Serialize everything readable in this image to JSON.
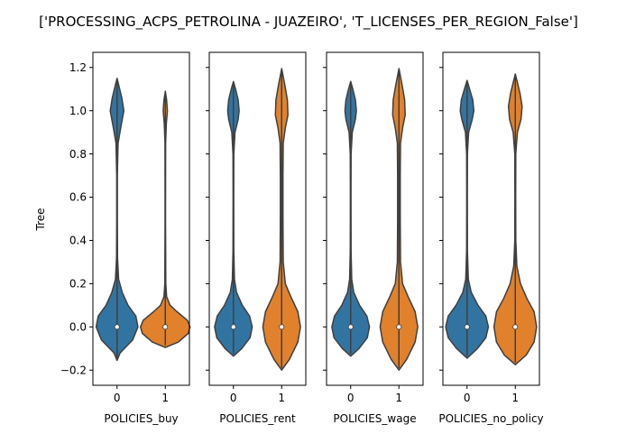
{
  "figure": {
    "suptitle": "['PROCESSING_ACPS_PETROLINA - JUAZEIRO', 'T_LICENSES_PER_REGION_False']"
  },
  "chart_data": {
    "type": "violin",
    "ylabel": "Tree",
    "ylim": [
      -0.27,
      1.27
    ],
    "yticks": [
      -0.2,
      0.0,
      0.2,
      0.4,
      0.6,
      0.8,
      1.0,
      1.2
    ],
    "ytick_labels": [
      "−0.2",
      "0.0",
      "0.2",
      "0.4",
      "0.6",
      "0.8",
      "1.0",
      "1.2"
    ],
    "shared_y": true,
    "colors": {
      "0": "#3274a1",
      "1": "#e1812c",
      "edge": "#3f3f3f"
    },
    "panels": [
      {
        "xlabel": "POLICIES_buy",
        "categories": [
          "0",
          "1"
        ],
        "violins": [
          {
            "category": "0",
            "ymin": -0.155,
            "ymax": 1.15,
            "median": 0.0,
            "profile": [
              [
                -0.155,
                0.0
              ],
              [
                -0.12,
                0.12
              ],
              [
                -0.06,
                0.6
              ],
              [
                0.0,
                0.8
              ],
              [
                0.05,
                0.72
              ],
              [
                0.1,
                0.42
              ],
              [
                0.16,
                0.2
              ],
              [
                0.22,
                0.06
              ],
              [
                0.32,
                0.02
              ],
              [
                0.5,
                0.012
              ],
              [
                0.7,
                0.012
              ],
              [
                0.85,
                0.04
              ],
              [
                0.92,
                0.14
              ],
              [
                1.0,
                0.26
              ],
              [
                1.06,
                0.18
              ],
              [
                1.11,
                0.08
              ],
              [
                1.15,
                0.0
              ]
            ]
          },
          {
            "category": "1",
            "ymin": -0.095,
            "ymax": 1.09,
            "median": 0.0,
            "profile": [
              [
                -0.095,
                0.0
              ],
              [
                -0.07,
                0.5
              ],
              [
                -0.03,
                0.88
              ],
              [
                0.0,
                0.95
              ],
              [
                0.03,
                0.85
              ],
              [
                0.07,
                0.45
              ],
              [
                0.1,
                0.18
              ],
              [
                0.14,
                0.05
              ],
              [
                0.2,
                0.02
              ],
              [
                0.5,
                0.01
              ],
              [
                0.85,
                0.012
              ],
              [
                0.94,
                0.04
              ],
              [
                1.0,
                0.08
              ],
              [
                1.05,
                0.05
              ],
              [
                1.09,
                0.0
              ]
            ]
          }
        ]
      },
      {
        "xlabel": "POLICIES_rent",
        "categories": [
          "0",
          "1"
        ],
        "violins": [
          {
            "category": "0",
            "ymin": -0.135,
            "ymax": 1.135,
            "median": 0.0,
            "profile": [
              [
                -0.135,
                0.0
              ],
              [
                -0.1,
                0.32
              ],
              [
                -0.05,
                0.64
              ],
              [
                0.0,
                0.72
              ],
              [
                0.05,
                0.62
              ],
              [
                0.1,
                0.34
              ],
              [
                0.16,
                0.12
              ],
              [
                0.22,
                0.04
              ],
              [
                0.35,
                0.015
              ],
              [
                0.6,
                0.012
              ],
              [
                0.8,
                0.015
              ],
              [
                0.9,
                0.06
              ],
              [
                0.96,
                0.18
              ],
              [
                1.0,
                0.22
              ],
              [
                1.05,
                0.18
              ],
              [
                1.1,
                0.08
              ],
              [
                1.135,
                0.0
              ]
            ]
          },
          {
            "category": "1",
            "ymin": -0.2,
            "ymax": 1.195,
            "median": 0.0,
            "profile": [
              [
                -0.2,
                0.0
              ],
              [
                -0.15,
                0.3
              ],
              [
                -0.07,
                0.62
              ],
              [
                0.0,
                0.72
              ],
              [
                0.07,
                0.62
              ],
              [
                0.14,
                0.35
              ],
              [
                0.2,
                0.14
              ],
              [
                0.3,
                0.06
              ],
              [
                0.5,
                0.05
              ],
              [
                0.7,
                0.05
              ],
              [
                0.85,
                0.06
              ],
              [
                0.92,
                0.14
              ],
              [
                0.98,
                0.24
              ],
              [
                1.05,
                0.22
              ],
              [
                1.12,
                0.12
              ],
              [
                1.195,
                0.0
              ]
            ]
          }
        ]
      },
      {
        "xlabel": "POLICIES_wage",
        "categories": [
          "0",
          "1"
        ],
        "violins": [
          {
            "category": "0",
            "ymin": -0.135,
            "ymax": 1.135,
            "median": 0.0,
            "profile": [
              [
                -0.135,
                0.0
              ],
              [
                -0.1,
                0.32
              ],
              [
                -0.05,
                0.64
              ],
              [
                0.0,
                0.72
              ],
              [
                0.05,
                0.62
              ],
              [
                0.1,
                0.34
              ],
              [
                0.16,
                0.12
              ],
              [
                0.22,
                0.04
              ],
              [
                0.35,
                0.015
              ],
              [
                0.6,
                0.012
              ],
              [
                0.8,
                0.015
              ],
              [
                0.9,
                0.06
              ],
              [
                0.96,
                0.18
              ],
              [
                1.0,
                0.22
              ],
              [
                1.05,
                0.18
              ],
              [
                1.1,
                0.08
              ],
              [
                1.135,
                0.0
              ]
            ]
          },
          {
            "category": "1",
            "ymin": -0.2,
            "ymax": 1.195,
            "median": 0.0,
            "profile": [
              [
                -0.2,
                0.0
              ],
              [
                -0.15,
                0.3
              ],
              [
                -0.07,
                0.62
              ],
              [
                0.0,
                0.72
              ],
              [
                0.07,
                0.62
              ],
              [
                0.14,
                0.35
              ],
              [
                0.2,
                0.14
              ],
              [
                0.3,
                0.06
              ],
              [
                0.5,
                0.05
              ],
              [
                0.7,
                0.05
              ],
              [
                0.85,
                0.06
              ],
              [
                0.92,
                0.14
              ],
              [
                0.98,
                0.24
              ],
              [
                1.05,
                0.22
              ],
              [
                1.12,
                0.12
              ],
              [
                1.195,
                0.0
              ]
            ]
          }
        ]
      },
      {
        "xlabel": "POLICIES_no_policy",
        "categories": [
          "0",
          "1"
        ],
        "violins": [
          {
            "category": "0",
            "ymin": -0.145,
            "ymax": 1.14,
            "median": 0.0,
            "profile": [
              [
                -0.145,
                0.0
              ],
              [
                -0.1,
                0.4
              ],
              [
                -0.05,
                0.72
              ],
              [
                0.0,
                0.82
              ],
              [
                0.05,
                0.72
              ],
              [
                0.1,
                0.42
              ],
              [
                0.16,
                0.16
              ],
              [
                0.22,
                0.05
              ],
              [
                0.35,
                0.015
              ],
              [
                0.6,
                0.012
              ],
              [
                0.8,
                0.015
              ],
              [
                0.9,
                0.06
              ],
              [
                0.96,
                0.2
              ],
              [
                1.0,
                0.26
              ],
              [
                1.05,
                0.22
              ],
              [
                1.1,
                0.1
              ],
              [
                1.14,
                0.0
              ]
            ]
          },
          {
            "category": "1",
            "ymin": -0.175,
            "ymax": 1.17,
            "median": 0.0,
            "profile": [
              [
                -0.175,
                0.0
              ],
              [
                -0.13,
                0.42
              ],
              [
                -0.07,
                0.72
              ],
              [
                0.0,
                0.82
              ],
              [
                0.07,
                0.72
              ],
              [
                0.13,
                0.45
              ],
              [
                0.2,
                0.2
              ],
              [
                0.28,
                0.06
              ],
              [
                0.4,
                0.02
              ],
              [
                0.6,
                0.015
              ],
              [
                0.8,
                0.02
              ],
              [
                0.9,
                0.08
              ],
              [
                0.96,
                0.22
              ],
              [
                1.02,
                0.26
              ],
              [
                1.08,
                0.18
              ],
              [
                1.13,
                0.08
              ],
              [
                1.17,
                0.0
              ]
            ]
          }
        ]
      }
    ]
  }
}
